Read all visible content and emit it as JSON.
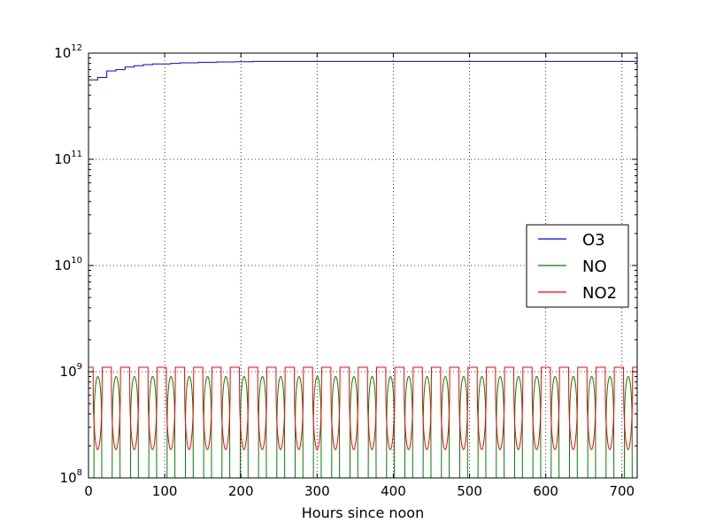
{
  "chart_data": {
    "type": "line",
    "title": "",
    "xlabel": "Hours since noon",
    "ylabel": "",
    "yscale": "log",
    "xlim": [
      0,
      720
    ],
    "ylim": [
      100000000,
      1000000000000
    ],
    "grid": true,
    "legend_position": "right",
    "x_ticks": [
      0,
      100,
      200,
      300,
      400,
      500,
      600,
      700
    ],
    "x_tick_labels": [
      "0",
      "100",
      "200",
      "300",
      "400",
      "500",
      "600",
      "700"
    ],
    "y_ticks": [
      100000000,
      1000000000,
      10000000000,
      100000000000,
      1000000000000
    ],
    "y_tick_labels": [
      {
        "base": "10",
        "exp": "8"
      },
      {
        "base": "10",
        "exp": "9"
      },
      {
        "base": "10",
        "exp": "10"
      },
      {
        "base": "10",
        "exp": "11"
      },
      {
        "base": "10",
        "exp": "12"
      }
    ],
    "period_hours": 24,
    "series": [
      {
        "name": "O3",
        "color": "#0000ff",
        "pattern": "stepwise rise then plateau with small daily steps",
        "x": [
          0,
          12,
          24,
          36,
          48,
          60,
          72,
          84,
          96,
          108,
          120,
          144,
          168,
          192,
          216,
          240,
          264,
          288,
          312,
          336,
          360,
          384,
          408,
          432,
          456,
          480,
          504,
          528,
          552,
          576,
          600,
          624,
          648,
          672,
          696,
          720
        ],
        "y": [
          560000000000,
          590000000000,
          680000000000,
          700000000000,
          740000000000,
          760000000000,
          780000000000,
          790000000000,
          790000000000,
          800000000000,
          810000000000,
          820000000000,
          825000000000,
          830000000000,
          835000000000,
          835000000000,
          835000000000,
          835000000000,
          835000000000,
          835000000000,
          835000000000,
          835000000000,
          835000000000,
          835000000000,
          835000000000,
          835000000000,
          835000000000,
          835000000000,
          835000000000,
          835000000000,
          835000000000,
          835000000000,
          835000000000,
          835000000000,
          835000000000,
          820000000000
        ]
      },
      {
        "name": "NO",
        "color": "#008000",
        "pattern": "daily oscillation: ~9e8 by day, falls below 1e8 at night",
        "day_value": 900000000,
        "night_value": 50000000
      },
      {
        "name": "NO2",
        "color": "#ff0000",
        "pattern": "daily oscillation: ~1.1e9 at night, minimum ~1.7e8-1.9e8 by day",
        "night_value": 1100000000,
        "day_value": 185000000
      }
    ]
  }
}
